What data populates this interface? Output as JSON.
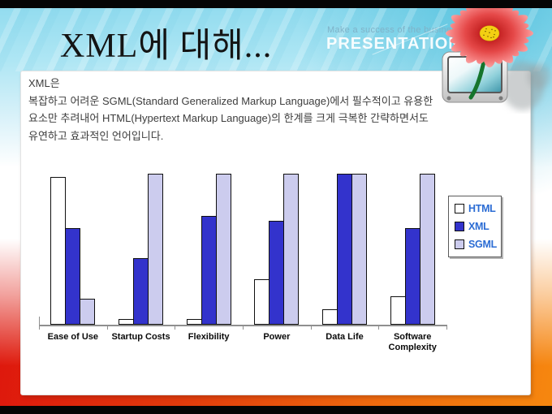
{
  "slide": {
    "title": "XML에 대해...",
    "header": {
      "tagline": "Make a success of the business",
      "brand": "PRESENTATION"
    },
    "body": {
      "intro": "XML은",
      "lines": [
        "복잡하고 어려운 SGML(Standard Generalized Markup Language)에서 필수적이고 유용한",
        "요소만 추려내어 HTML(Hypertext Markup Language)의 한계를 크게 극복한 간략하면서도",
        "유연하고 효과적인 언어입니다."
      ]
    }
  },
  "chart_data": {
    "type": "bar",
    "categories": [
      "Ease of Use",
      "Startup Costs",
      "Flexibility",
      "Power",
      "Data Life",
      "Software Complexity"
    ],
    "series": [
      {
        "name": "HTML",
        "color": "#ffffff",
        "values": [
          98,
          4,
          4,
          30,
          10,
          19
        ]
      },
      {
        "name": "XML",
        "color": "#3333cc",
        "values": [
          64,
          44,
          72,
          69,
          100,
          64
        ]
      },
      {
        "name": "SGML",
        "color": "#ccccee",
        "values": [
          17,
          100,
          100,
          100,
          100,
          100
        ]
      }
    ],
    "title": "",
    "xlabel": "",
    "ylabel": "",
    "ylim": [
      0,
      100
    ],
    "grid": false,
    "legend_position": "right",
    "legend_text_color": "#2b6cd4",
    "axis_color": "#8f8f8f"
  },
  "icons": {
    "flower": "red-cosmos-flower-icon",
    "monitor": "crt-monitor-icon"
  },
  "colors": {
    "top_band_cyan": "#9adef0",
    "bottom_band_red": "#dd0d0d",
    "bottom_band_orange": "#f6870f",
    "accent_blue": "#2b6cd4"
  }
}
